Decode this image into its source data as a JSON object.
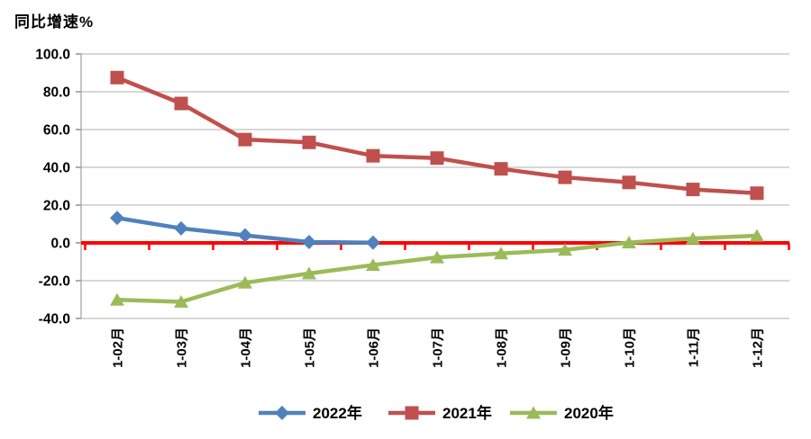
{
  "title": "同比增速%",
  "chart_data": {
    "type": "line",
    "title": "同比增速%",
    "categories": [
      "1-02月",
      "1-03月",
      "1-04月",
      "1-05月",
      "1-06月",
      "1-07月",
      "1-08月",
      "1-09月",
      "1-10月",
      "1-11月",
      "1-12月"
    ],
    "series": [
      {
        "name": "2022年",
        "marker": "diamond",
        "color": "#4F81BD",
        "values": [
          13.2,
          7.7,
          4.0,
          0.5,
          0.1,
          null,
          null,
          null,
          null,
          null,
          null
        ]
      },
      {
        "name": "2021年",
        "marker": "square",
        "color": "#C0504D",
        "values": [
          87.5,
          73.8,
          54.7,
          53.2,
          46.1,
          44.9,
          39.2,
          34.7,
          32.0,
          28.3,
          26.3
        ]
      },
      {
        "name": "2020年",
        "marker": "triangle",
        "color": "#9BBB59",
        "values": [
          -30.1,
          -31.2,
          -21.1,
          -16.2,
          -11.7,
          -7.7,
          -5.6,
          -3.7,
          0.2,
          2.3,
          3.8
        ]
      }
    ],
    "ylim": [
      -40,
      100
    ],
    "ytick_step": 20,
    "yticks": [
      100,
      80,
      60,
      40,
      20,
      0,
      -20,
      -40
    ],
    "ytick_labels": [
      "100.0",
      "80.0",
      "60.0",
      "40.0",
      "20.0",
      "0.0",
      "-20.0",
      "-40.0"
    ],
    "grid": true,
    "zero_line_color": "#FF0000",
    "gridline_color": "#BFBFBF",
    "axis_color": "#A6A6A6",
    "tick_color": "#808080",
    "legend_position": "bottom",
    "legend": [
      "2022年",
      "2021年",
      "2020年"
    ]
  }
}
